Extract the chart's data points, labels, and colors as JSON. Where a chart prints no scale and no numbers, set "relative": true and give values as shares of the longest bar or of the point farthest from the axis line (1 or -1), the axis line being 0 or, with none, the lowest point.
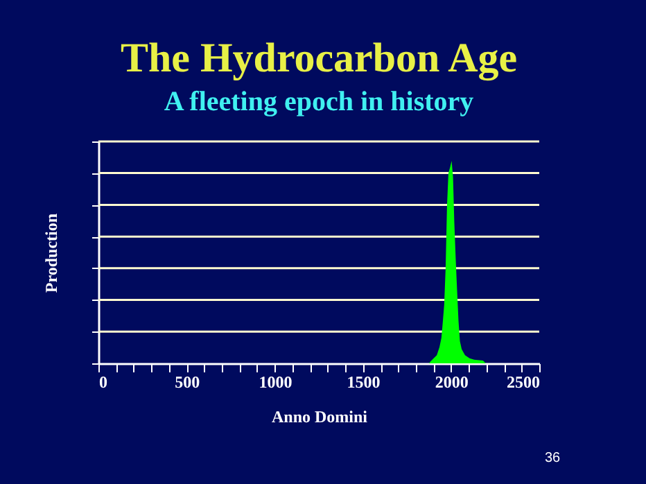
{
  "chart_data": {
    "type": "area",
    "title": "The Hydrocarbon Age",
    "subtitle": "A fleeting epoch in history",
    "xlabel": "Anno Domini",
    "ylabel": "Production",
    "relative": true,
    "legend": false,
    "x": [
      1874,
      1895,
      1919,
      1934,
      1945,
      1953,
      1961,
      1969,
      1977,
      1985,
      1995,
      2003,
      2011,
      2018,
      2026,
      2034,
      2042,
      2050,
      2060,
      2079,
      2105,
      2131,
      2181,
      2197
    ],
    "series": [
      {
        "color": "#00ff00",
        "values": [
          0,
          0.02,
          0.04,
          0.08,
          0.125,
          0.205,
          0.29,
          0.47,
          0.78,
          0.94,
          0.97,
          1.0,
          0.92,
          0.7,
          0.52,
          0.36,
          0.21,
          0.11,
          0.07,
          0.04,
          0.025,
          0.018,
          0.014,
          0
        ]
      }
    ],
    "ref_lines": [
      {
        "axis": "y",
        "value": 0.157,
        "color": "#fffbd0"
      },
      {
        "axis": "y",
        "value": 0.313,
        "color": "#fffbd0"
      },
      {
        "axis": "y",
        "value": 0.47,
        "color": "#fffbd0"
      },
      {
        "axis": "y",
        "value": 0.626,
        "color": "#fffbd0"
      },
      {
        "axis": "y",
        "value": 0.783,
        "color": "#fffbd0"
      },
      {
        "axis": "y",
        "value": 0.94,
        "color": "#fffbd0"
      },
      {
        "axis": "y",
        "value": 1.096,
        "color": "#fffbd0"
      }
    ],
    "xlim": [
      0,
      2500
    ],
    "xticks": [
      0,
      500,
      1000,
      1500,
      2000,
      2500
    ],
    "annotations": [
      "36"
    ]
  }
}
